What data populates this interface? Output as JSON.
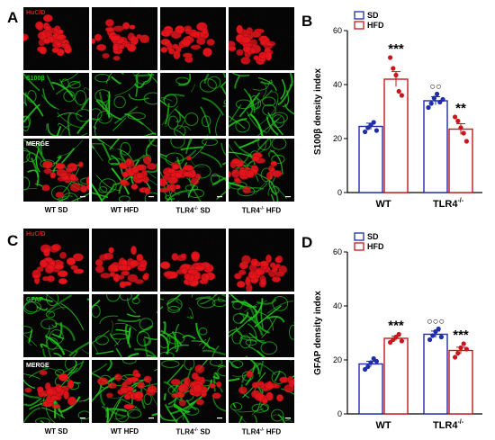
{
  "panels": {
    "A": "A",
    "B": "B",
    "C": "C",
    "D": "D"
  },
  "image_grid_top": {
    "row_labels": [
      "HuC/D",
      "S100β",
      "MERGE"
    ],
    "col_labels": [
      "WT SD",
      "WT HFD",
      "TLR4 SD",
      "TLR4 HFD"
    ],
    "tlr_suffix": "-/-"
  },
  "image_grid_bottom": {
    "row_labels": [
      "HuC/D",
      "GFAP",
      "MERGE"
    ],
    "col_labels": [
      "WT SD",
      "WT HFD",
      "TLR4 SD",
      "TLR4 HFD"
    ],
    "tlr_suffix": "-/-"
  },
  "colors": {
    "red": "#e8141c",
    "green": "#22c41e",
    "sd": "#1f2ea8",
    "hfd": "#c8171c"
  },
  "chart_data": [
    {
      "type": "bar",
      "panel": "B",
      "categories": [
        "WT",
        "TLR4"
      ],
      "category_suffix": [
        "",
        "-/-"
      ],
      "ylabel": "S100β density index",
      "ylim": [
        0,
        60
      ],
      "yticks": [
        0,
        20,
        40,
        60
      ],
      "legend": [
        "SD",
        "HFD"
      ],
      "series": [
        {
          "name": "SD",
          "values": [
            24.5,
            34.0
          ],
          "sem": [
            1.2,
            1.5
          ],
          "points": [
            [
              22.5,
              24.0,
              25.0,
              26.0,
              23.0
            ],
            [
              31.5,
              33.0,
              35.0,
              36.5,
              33.5,
              34.5
            ]
          ]
        },
        {
          "name": "HFD",
          "values": [
            42.0,
            23.5
          ],
          "sem": [
            2.8,
            2.0
          ],
          "points": [
            [
              50.0,
              46.0,
              43.5,
              37.5,
              36.0
            ],
            [
              28.0,
              26.5,
              24.0,
              22.0,
              19.0
            ]
          ]
        }
      ],
      "annotations": [
        {
          "category": 0,
          "series": 1,
          "text": "***"
        },
        {
          "category": 1,
          "series": 0,
          "text": "○○"
        },
        {
          "category": 1,
          "series": 1,
          "text": "**"
        }
      ]
    },
    {
      "type": "bar",
      "panel": "D",
      "categories": [
        "WT",
        "TLR4"
      ],
      "category_suffix": [
        "",
        "-/-"
      ],
      "ylabel": "GFAP density index",
      "ylim": [
        0,
        60
      ],
      "yticks": [
        0,
        20,
        40,
        60
      ],
      "legend": [
        "SD",
        "HFD"
      ],
      "series": [
        {
          "name": "SD",
          "values": [
            18.5,
            29.5
          ],
          "sem": [
            1.0,
            1.2
          ],
          "points": [
            [
              16.5,
              17.5,
              19.0,
              20.5,
              19.5
            ],
            [
              27.5,
              29.0,
              30.5,
              31.5,
              28.5
            ]
          ]
        },
        {
          "name": "HFD",
          "values": [
            28.0,
            23.5
          ],
          "sem": [
            0.8,
            1.2
          ],
          "points": [
            [
              26.5,
              27.5,
              28.5,
              29.5,
              27.0
            ],
            [
              21.0,
              22.5,
              24.5,
              26.0,
              24.0
            ]
          ]
        }
      ],
      "annotations": [
        {
          "category": 0,
          "series": 1,
          "text": "***"
        },
        {
          "category": 1,
          "series": 0,
          "text": "○○○"
        },
        {
          "category": 1,
          "series": 1,
          "text": "***"
        }
      ]
    }
  ]
}
